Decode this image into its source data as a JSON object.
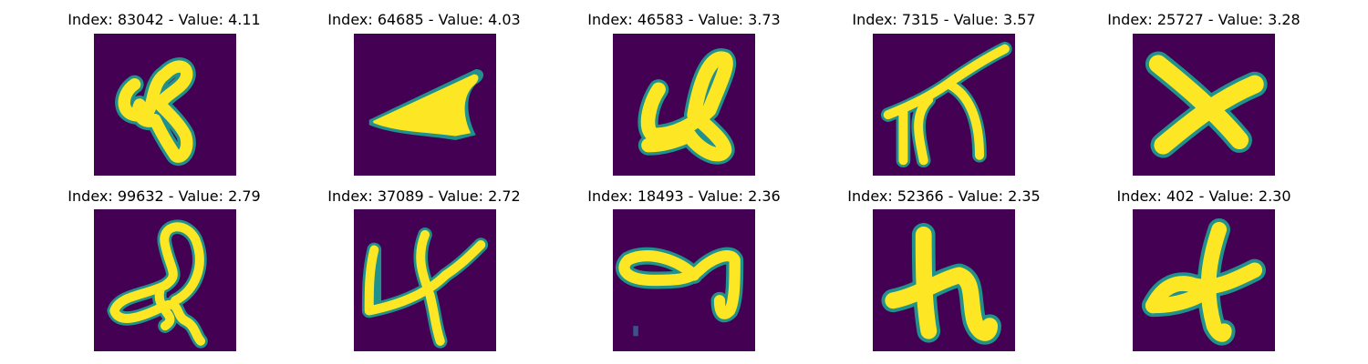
{
  "figure": {
    "background": "#ffffff",
    "colormap": "viridis",
    "colors": {
      "background": "#440154",
      "edge": "#21918c",
      "foreground": "#fde725"
    }
  },
  "panels": [
    {
      "title": "Index: 83042 - Value: 4.11",
      "glyph": "curl-loop-4"
    },
    {
      "title": "Index: 64685 - Value: 4.03",
      "glyph": "wedge"
    },
    {
      "title": "Index: 46583 - Value: 3.73",
      "glyph": "hook-4"
    },
    {
      "title": "Index: 7315 - Value: 3.57",
      "glyph": "branch-stroke"
    },
    {
      "title": "Index: 25727 - Value: 3.28",
      "glyph": "cross-blob"
    },
    {
      "title": "Index: 99632 - Value: 2.79",
      "glyph": "loop-scribble"
    },
    {
      "title": "Index: 37089 - Value: 2.72",
      "glyph": "angular-4"
    },
    {
      "title": "Index: 18493 - Value: 2.36",
      "glyph": "loop-9"
    },
    {
      "title": "Index: 52366 - Value: 2.35",
      "glyph": "h-shape"
    },
    {
      "title": "Index: 402 - Value: 2.30",
      "glyph": "plus-shape"
    }
  ]
}
